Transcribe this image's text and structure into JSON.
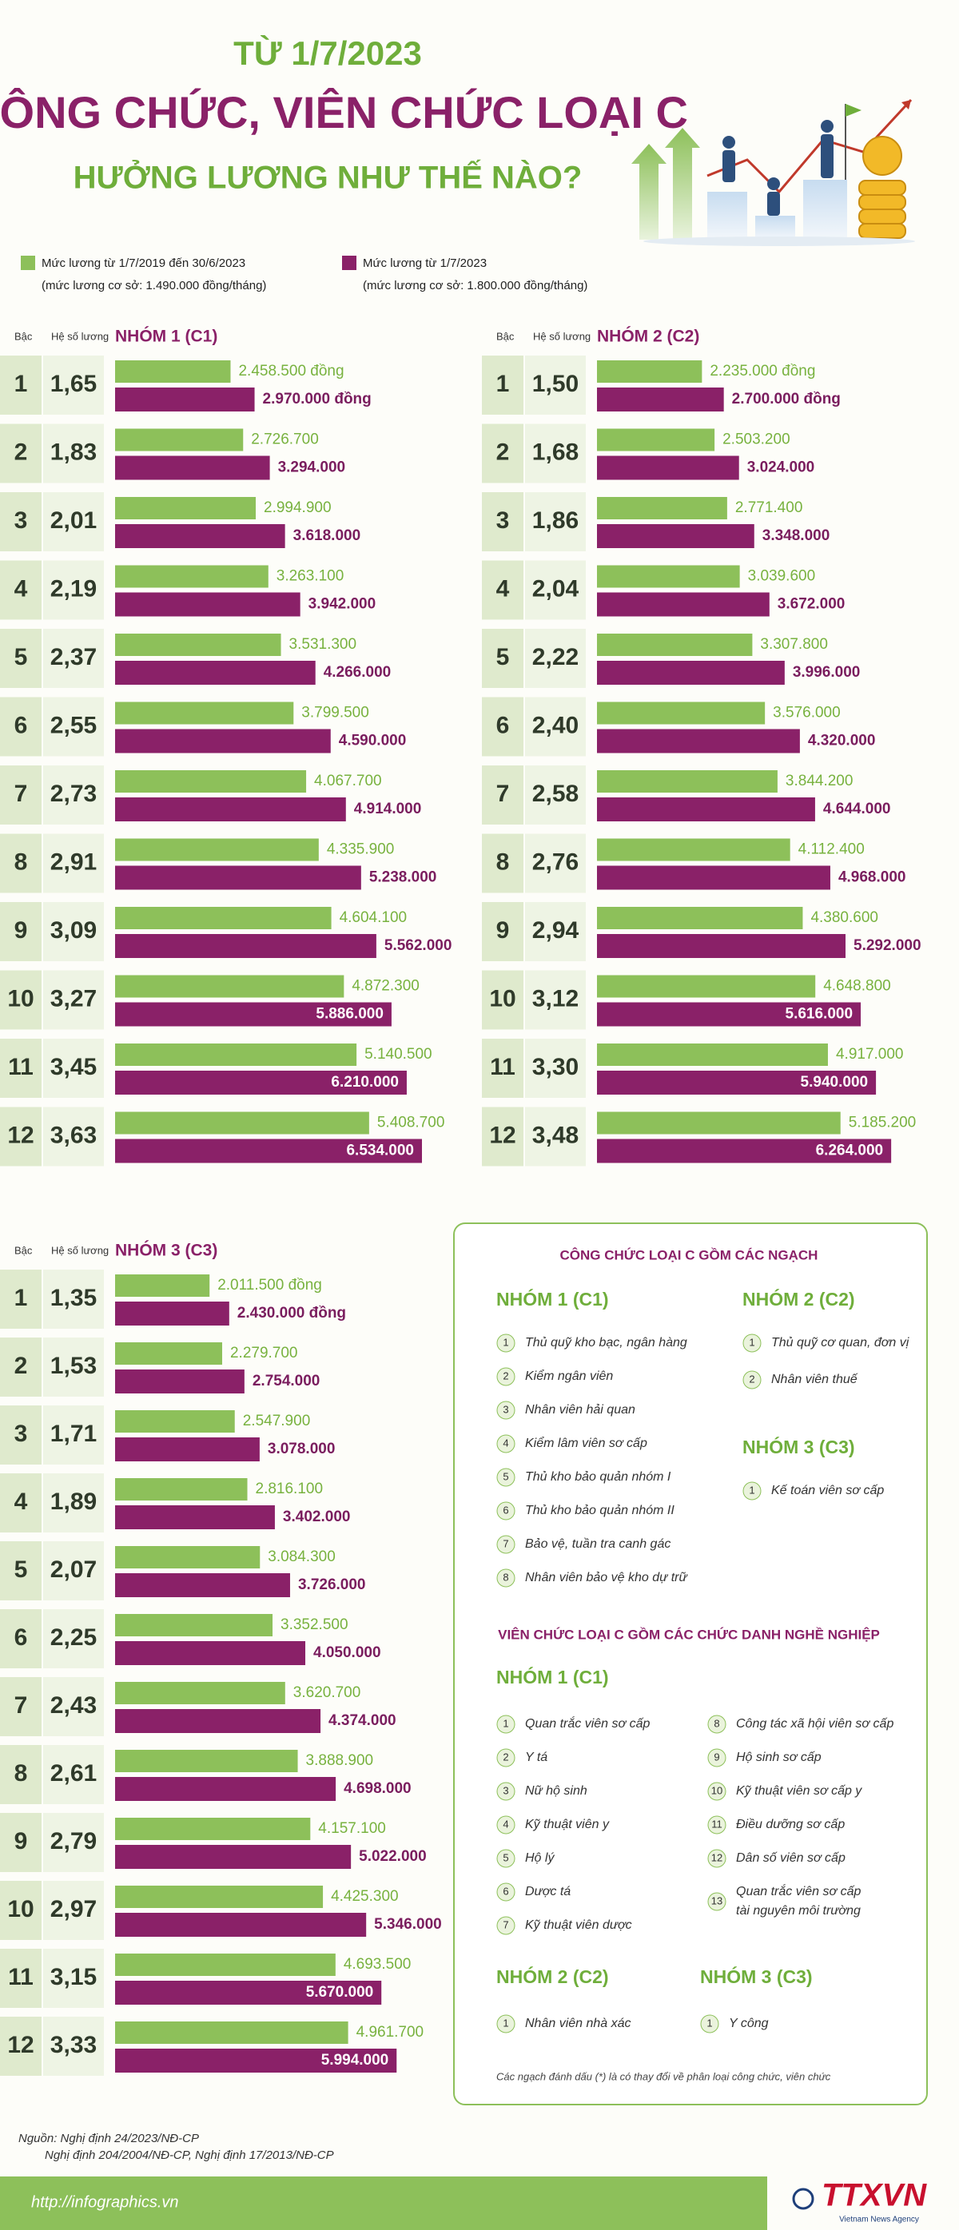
{
  "header": {
    "kicker": "TỪ 1/7/2023",
    "title": "CÔNG CHỨC, VIÊN CHỨC LOẠI C",
    "subtitle": "HƯỞNG LƯƠNG NHƯ THẾ NÀO?"
  },
  "legend": [
    {
      "name": "Mức lương từ 1/7/2019 đến 30/6/2023",
      "note": "(mức lương cơ sở: 1.490.000 đồng/tháng)",
      "color": "#8dc05a"
    },
    {
      "name": "Mức lương từ 1/7/2023",
      "note": "(mức lương cơ sở: 1.800.000 đồng/tháng)",
      "color": "#8a2168"
    }
  ],
  "chart_data": [
    {
      "type": "bar",
      "title": "NHÓM 1 (C1)",
      "category_label": "Bậc",
      "coefficient_label": "Hệ số lương",
      "categories": [
        "1",
        "2",
        "3",
        "4",
        "5",
        "6",
        "7",
        "8",
        "9",
        "10",
        "11",
        "12"
      ],
      "coefficients": [
        "1,65",
        "1,83",
        "2,01",
        "2,19",
        "2,37",
        "2,55",
        "2,73",
        "2,91",
        "3,09",
        "3,27",
        "3,45",
        "3,63"
      ],
      "series": [
        {
          "color": "#8dc05a",
          "values": [
            2458500,
            2726700,
            2994900,
            3263100,
            3531300,
            3799500,
            4067700,
            4335900,
            4604100,
            4872300,
            5140500,
            5408700
          ],
          "value_labels": [
            "2.458.500 đồng",
            "2.726.700",
            "2.994.900",
            "3.263.100",
            "3.531.300",
            "3.799.500",
            "4.067.700",
            "4.335.900",
            "4.604.100",
            "4.872.300",
            "5.140.500",
            "5.408.700"
          ]
        },
        {
          "color": "#8a2168",
          "values": [
            2970000,
            3294000,
            3618000,
            3942000,
            4266000,
            4590000,
            4914000,
            5238000,
            5562000,
            5886000,
            6210000,
            6534000
          ],
          "value_labels": [
            "2.970.000 đồng",
            "3.294.000",
            "3.618.000",
            "3.942.000",
            "4.266.000",
            "4.590.000",
            "4.914.000",
            "5.238.000",
            "5.562.000",
            "5.886.000",
            "6.210.000",
            "6.534.000"
          ]
        }
      ]
    },
    {
      "type": "bar",
      "title": "NHÓM 2 (C2)",
      "category_label": "Bậc",
      "coefficient_label": "Hệ số lương",
      "categories": [
        "1",
        "2",
        "3",
        "4",
        "5",
        "6",
        "7",
        "8",
        "9",
        "10",
        "11",
        "12"
      ],
      "coefficients": [
        "1,50",
        "1,68",
        "1,86",
        "2,04",
        "2,22",
        "2,40",
        "2,58",
        "2,76",
        "2,94",
        "3,12",
        "3,30",
        "3,48"
      ],
      "series": [
        {
          "color": "#8dc05a",
          "values": [
            2235000,
            2503200,
            2771400,
            3039600,
            3307800,
            3576000,
            3844200,
            4112400,
            4380600,
            4648800,
            4917000,
            5185200
          ],
          "value_labels": [
            "2.235.000 đồng",
            "2.503.200",
            "2.771.400",
            "3.039.600",
            "3.307.800",
            "3.576.000",
            "3.844.200",
            "4.112.400",
            "4.380.600",
            "4.648.800",
            "4.917.000",
            "5.185.200"
          ]
        },
        {
          "color": "#8a2168",
          "values": [
            2700000,
            3024000,
            3348000,
            3672000,
            3996000,
            4320000,
            4644000,
            4968000,
            5292000,
            5616000,
            5940000,
            6264000
          ],
          "value_labels": [
            "2.700.000 đồng",
            "3.024.000",
            "3.348.000",
            "3.672.000",
            "3.996.000",
            "4.320.000",
            "4.644.000",
            "4.968.000",
            "5.292.000",
            "5.616.000",
            "5.940.000",
            "6.264.000"
          ]
        }
      ]
    },
    {
      "type": "bar",
      "title": "NHÓM 3 (C3)",
      "category_label": "Bậc",
      "coefficient_label": "Hệ số lương",
      "categories": [
        "1",
        "2",
        "3",
        "4",
        "5",
        "6",
        "7",
        "8",
        "9",
        "10",
        "11",
        "12"
      ],
      "coefficients": [
        "1,35",
        "1,53",
        "1,71",
        "1,89",
        "2,07",
        "2,25",
        "2,43",
        "2,61",
        "2,79",
        "2,97",
        "3,15",
        "3,33"
      ],
      "series": [
        {
          "color": "#8dc05a",
          "values": [
            2011500,
            2279700,
            2547900,
            2816100,
            3084300,
            3352500,
            3620700,
            3888900,
            4157100,
            4425300,
            4693500,
            4961700
          ],
          "value_labels": [
            "2.011.500 đồng",
            "2.279.700",
            "2.547.900",
            "2.816.100",
            "3.084.300",
            "3.352.500",
            "3.620.700",
            "3.888.900",
            "4.157.100",
            "4.425.300",
            "4.693.500",
            "4.961.700"
          ]
        },
        {
          "color": "#8a2168",
          "values": [
            2430000,
            2754000,
            3078000,
            3402000,
            3726000,
            4050000,
            4374000,
            4698000,
            5022000,
            5346000,
            5670000,
            5994000
          ],
          "value_labels": [
            "2.430.000 đồng",
            "2.754.000",
            "3.078.000",
            "3.402.000",
            "3.726.000",
            "4.050.000",
            "4.374.000",
            "4.698.000",
            "5.022.000",
            "5.346.000",
            "5.670.000",
            "5.994.000"
          ]
        }
      ]
    }
  ],
  "panel": {
    "civil_title": "CÔNG CHỨC LOẠI C GỒM CÁC NGẠCH",
    "civil_groups": [
      {
        "title": "NHÓM 1 (C1)",
        "items": [
          {
            "number": "1",
            "lines": [
              "Thủ quỹ kho bạc, ngân hàng"
            ]
          },
          {
            "number": "2",
            "lines": [
              "Kiểm ngân viên"
            ]
          },
          {
            "number": "3",
            "lines": [
              "Nhân viên hải quan"
            ]
          },
          {
            "number": "4",
            "lines": [
              "Kiểm lâm viên sơ cấp"
            ]
          },
          {
            "number": "5",
            "lines": [
              "Thủ kho bảo quản nhóm I"
            ]
          },
          {
            "number": "6",
            "lines": [
              "Thủ kho bảo quản nhóm II"
            ]
          },
          {
            "number": "7",
            "lines": [
              "Bảo vệ, tuần tra canh gác"
            ]
          },
          {
            "number": "8",
            "lines": [
              "Nhân viên bảo vệ kho dự trữ"
            ]
          }
        ]
      },
      {
        "title": "NHÓM 2 (C2)",
        "items": [
          {
            "number": "1",
            "lines": [
              "Thủ quỹ cơ quan, đơn vị"
            ]
          },
          {
            "number": "2",
            "lines": [
              "Nhân viên thuế"
            ]
          }
        ]
      },
      {
        "title": "NHÓM 3 (C3)",
        "items": [
          {
            "number": "1",
            "lines": [
              "Kế toán viên sơ cấp"
            ]
          }
        ]
      }
    ],
    "public_title": "VIÊN CHỨC LOẠI C GỒM CÁC CHỨC DANH NGHỀ NGHIỆP",
    "public_groups": [
      {
        "title": "NHÓM 1 (C1)",
        "items": [
          {
            "number": "1",
            "lines": [
              "Quan trắc viên sơ cấp"
            ]
          },
          {
            "number": "2",
            "lines": [
              "Y tá"
            ]
          },
          {
            "number": "3",
            "lines": [
              "Nữ hộ sinh"
            ]
          },
          {
            "number": "4",
            "lines": [
              "Kỹ thuật viên y"
            ]
          },
          {
            "number": "5",
            "lines": [
              "Hộ lý"
            ]
          },
          {
            "number": "6",
            "lines": [
              "Dược tá"
            ]
          },
          {
            "number": "7",
            "lines": [
              "Kỹ thuật viên dược"
            ]
          },
          {
            "number": "8",
            "lines": [
              "Công tác xã hội viên sơ cấp"
            ]
          },
          {
            "number": "9",
            "lines": [
              "Hộ sinh sơ cấp"
            ]
          },
          {
            "number": "10",
            "lines": [
              "Kỹ thuật viên sơ cấp y"
            ]
          },
          {
            "number": "11",
            "lines": [
              "Điều dưỡng sơ cấp"
            ]
          },
          {
            "number": "12",
            "lines": [
              "Dân số viên sơ cấp"
            ]
          },
          {
            "number": "13",
            "lines": [
              "Quan trắc viên sơ cấp",
              "tài nguyên môi trường"
            ]
          }
        ]
      },
      {
        "title": "NHÓM 2 (C2)",
        "items": [
          {
            "number": "1",
            "lines": [
              "Nhân viên nhà xác"
            ]
          }
        ]
      },
      {
        "title": "NHÓM 3 (C3)",
        "items": [
          {
            "number": "1",
            "lines": [
              "Y công"
            ]
          }
        ]
      }
    ],
    "footnote": "Các ngạch đánh dấu (*) là có thay đổi về phân loại công chức, viên chức"
  },
  "footer": {
    "sources": [
      "Nguồn: Nghị định 24/2023/NĐ-CP",
      "Nghị định 204/2004/NĐ-CP, Nghị định 17/2013/NĐ-CP"
    ],
    "url": "http://infographics.vn",
    "logo": "TTXVN",
    "logo_sub": "Vietnam News Agency"
  }
}
